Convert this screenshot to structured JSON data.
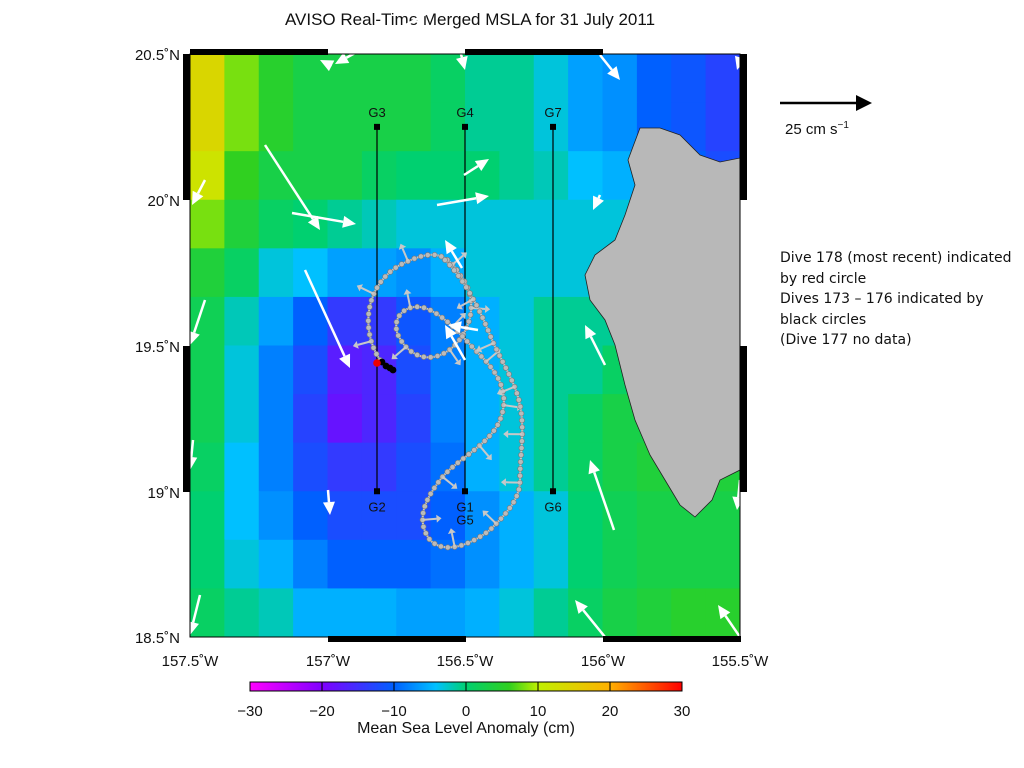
{
  "title": "AVISO Real-Time Merged MSLA for 31 July 2011",
  "map": {
    "lon_range": [
      -157.5,
      -155.5
    ],
    "lat_range": [
      18.5,
      20.5
    ],
    "x_ticks": [
      "157.5˚W",
      "157˚W",
      "156.5˚W",
      "156˚W",
      "155.5˚W"
    ],
    "y_ticks": [
      "20.5˚N",
      "20˚N",
      "19.5˚N",
      "19˚N",
      "18.5˚N"
    ],
    "land_color": "#b8b8b8",
    "track_color": "#c8c8c8",
    "recent_dive_color": "#ee0000",
    "previous_dives_color": "#000000",
    "vector_color": "#ffffff",
    "msla_grid_cm": [
      [
        14,
        8,
        5,
        3,
        3,
        3,
        3,
        1,
        -1,
        -1,
        -3,
        -6,
        -7,
        -10,
        -11,
        -13
      ],
      [
        14,
        8,
        5,
        3,
        3,
        3,
        3,
        1,
        -1,
        -1,
        -3,
        -6,
        -7,
        -10,
        -11,
        -13
      ],
      [
        12,
        6,
        3,
        3,
        3,
        1,
        0,
        0,
        0,
        -1,
        -2,
        -4,
        -5,
        -8,
        -10,
        -12
      ],
      [
        8,
        4,
        1,
        0,
        -1,
        -2,
        -3,
        -3,
        -3,
        -3,
        -3,
        -3,
        -3,
        -5,
        -8,
        -11
      ],
      [
        4,
        1,
        -3,
        -4,
        -6,
        -6,
        -7,
        -5,
        -3,
        -3,
        -3,
        -3,
        -3,
        -3,
        -6,
        -9
      ],
      [
        2,
        -2,
        -6,
        -10,
        -14,
        -14,
        -11,
        -8,
        -5,
        -3,
        -1,
        -1,
        -1,
        -1,
        -3,
        -6
      ],
      [
        2,
        -3,
        -8,
        -12,
        -17,
        -16,
        -12,
        -8,
        -5,
        -3,
        -1,
        -1,
        1,
        1,
        1,
        1
      ],
      [
        2,
        -3,
        -8,
        -13,
        -18,
        -16,
        -13,
        -8,
        -5,
        -3,
        -1,
        1,
        3,
        3,
        3,
        3
      ],
      [
        1,
        -4,
        -8,
        -12,
        -14,
        -14,
        -12,
        -9,
        -5,
        -3,
        -1,
        1,
        3,
        4,
        4,
        4
      ],
      [
        0,
        -4,
        -7,
        -10,
        -12,
        -12,
        -12,
        -10,
        -7,
        -5,
        -3,
        0,
        2,
        3,
        3,
        3
      ],
      [
        0,
        -3,
        -5,
        -8,
        -10,
        -10,
        -10,
        -9,
        -7,
        -5,
        -3,
        0,
        2,
        3,
        3,
        3
      ],
      [
        1,
        -1,
        -2,
        -5,
        -5,
        -5,
        -6,
        -6,
        -5,
        -3,
        -1,
        1,
        3,
        4,
        5,
        5
      ]
    ],
    "gliders": [
      {
        "id": "G3",
        "lon": -156.82,
        "lat": 20.25
      },
      {
        "id": "G4",
        "lon": -156.5,
        "lat": 20.25
      },
      {
        "id": "G7",
        "lon": -156.18,
        "lat": 20.25
      },
      {
        "id": "G2",
        "lon": -156.82,
        "lat": 19.0
      },
      {
        "id": "G1",
        "lon": -156.5,
        "lat": 19.0
      },
      {
        "id": "G6",
        "lon": -156.18,
        "lat": 19.0
      }
    ],
    "extra_labels": [
      {
        "id": "G5",
        "lon": -156.5,
        "lat": 18.93
      }
    ]
  },
  "reference_arrow": {
    "label": "25 cm s",
    "exponent": "−1"
  },
  "notes": [
    "Dive 178 (most recent) indicated",
    "by red circle",
    "Dives 173 – 176 indicated by",
    "black circles",
    "(Dive 177 no data)"
  ],
  "colorbar": {
    "min": -30,
    "max": 30,
    "ticks": [
      "−30",
      "−20",
      "−10",
      "0",
      "10",
      "20",
      "30"
    ],
    "title": "Mean Sea Level Anomaly (cm)"
  }
}
